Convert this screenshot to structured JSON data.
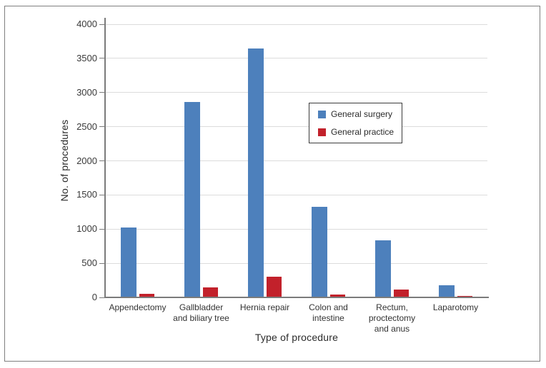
{
  "chart_data": {
    "type": "bar",
    "title": "",
    "xlabel": "Type of procedure",
    "ylabel": "No. of procedures",
    "ylim": [
      0,
      4000
    ],
    "yticks": [
      0,
      500,
      1000,
      1500,
      2000,
      2500,
      3000,
      3500,
      4000
    ],
    "grid": true,
    "legend_position": "upper-center-right",
    "categories": [
      "Appendectomy",
      "Gallbladder and biliary tree",
      "Hernia repair",
      "Colon and intestine",
      "Rectum, proctectomy and anus",
      "Laparotomy"
    ],
    "category_label_lines": [
      [
        "Appendectomy"
      ],
      [
        "Gallbladder",
        "and biliary tree"
      ],
      [
        "Hernia repair"
      ],
      [
        "Colon and",
        "intestine"
      ],
      [
        "Rectum,",
        "proctectomy",
        "and anus"
      ],
      [
        "Laparotomy"
      ]
    ],
    "series": [
      {
        "name": "General surgery",
        "color": "#4d80bc",
        "values": [
          1020,
          2860,
          3650,
          1330,
          840,
          175
        ]
      },
      {
        "name": "General practice",
        "color": "#c2212b",
        "values": [
          50,
          150,
          300,
          40,
          120,
          25
        ]
      }
    ]
  },
  "colors": {
    "grid": "#dcdcdc",
    "axis": "#7b7b7b",
    "text": "#2b2b2b",
    "frame_border": "#7f7f7f",
    "legend_border": "#3c3c3c",
    "background": "#ffffff"
  }
}
